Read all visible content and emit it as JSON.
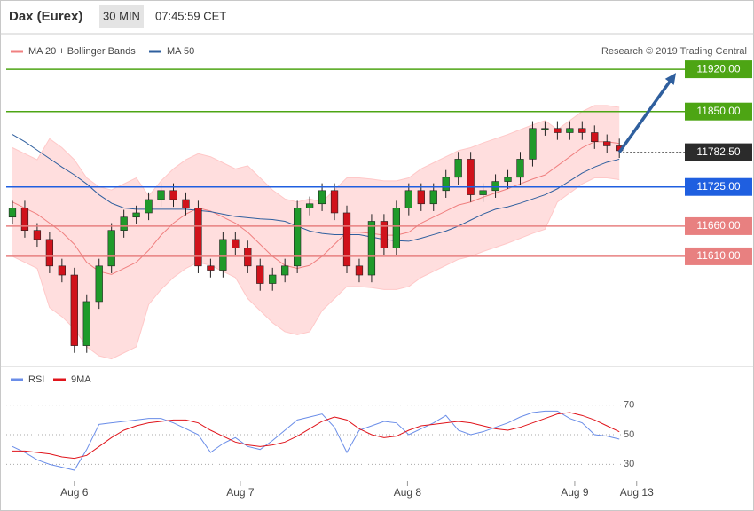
{
  "header": {
    "instrument": "Dax (Eurex)",
    "interval": "30 MIN",
    "time": "07:45:59 CET"
  },
  "chart_data": [
    {
      "type": "candlestick",
      "credit": "Research © 2019 Trading Central",
      "up_color": "#1f9a2a",
      "down_color": "#d0121b",
      "series": [
        {
          "name": "MA 20 + Bollinger Bands",
          "color": "#f08080",
          "band_color": "#ffdede",
          "values": [
            11700,
            11690,
            11680,
            11665,
            11650,
            11630,
            11600,
            11585,
            11580,
            11590,
            11600,
            11620,
            11645,
            11665,
            11680,
            11690,
            11685,
            11675,
            11665,
            11650,
            11630,
            11610,
            11595,
            11590,
            11595,
            11610,
            11630,
            11650,
            11650,
            11648,
            11645,
            11645,
            11650,
            11665,
            11675,
            11685,
            11695,
            11700,
            11708,
            11715,
            11722,
            11730,
            11738,
            11745,
            11760,
            11775,
            11790,
            11800,
            11800,
            11797
          ],
          "upper": [
            11790,
            11780,
            11770,
            11805,
            11790,
            11770,
            11740,
            11725,
            11720,
            11730,
            11740,
            11710,
            11735,
            11755,
            11770,
            11780,
            11775,
            11765,
            11755,
            11760,
            11740,
            11720,
            11705,
            11700,
            11705,
            11700,
            11720,
            11740,
            11740,
            11738,
            11735,
            11735,
            11740,
            11755,
            11765,
            11775,
            11785,
            11790,
            11798,
            11805,
            11812,
            11820,
            11828,
            11835,
            11820,
            11835,
            11850,
            11860,
            11860,
            11857
          ],
          "lower": [
            11610,
            11600,
            11590,
            11525,
            11510,
            11490,
            11460,
            11445,
            11440,
            11450,
            11460,
            11530,
            11555,
            11575,
            11590,
            11600,
            11595,
            11585,
            11575,
            11540,
            11520,
            11500,
            11485,
            11480,
            11485,
            11520,
            11540,
            11560,
            11560,
            11558,
            11555,
            11555,
            11560,
            11575,
            11585,
            11595,
            11605,
            11610,
            11618,
            11625,
            11632,
            11640,
            11648,
            11655,
            11700,
            11715,
            11730,
            11740,
            11740,
            11737
          ]
        },
        {
          "name": "MA 50",
          "color": "#2f5f9e",
          "values": [
            11812,
            11800,
            11786,
            11772,
            11758,
            11745,
            11730,
            11712,
            11698,
            11690,
            11688,
            11688,
            11688,
            11688,
            11688,
            11686,
            11684,
            11680,
            11676,
            11674,
            11672,
            11671,
            11668,
            11660,
            11652,
            11648,
            11646,
            11646,
            11646,
            11642,
            11638,
            11636,
            11635,
            11640,
            11646,
            11652,
            11660,
            11670,
            11680,
            11688,
            11692,
            11698,
            11705,
            11712,
            11722,
            11735,
            11748,
            11758,
            11766,
            11771
          ]
        }
      ],
      "candles": [
        [
          11675,
          11702,
          11663,
          11690
        ],
        [
          11690,
          11702,
          11641,
          11653
        ],
        [
          11653,
          11665,
          11626,
          11638
        ],
        [
          11638,
          11650,
          11582,
          11594
        ],
        [
          11594,
          11606,
          11567,
          11579
        ],
        [
          11579,
          11591,
          11450,
          11462
        ],
        [
          11462,
          11547,
          11450,
          11535
        ],
        [
          11535,
          11606,
          11523,
          11594
        ],
        [
          11594,
          11665,
          11582,
          11653
        ],
        [
          11653,
          11687,
          11641,
          11675
        ],
        [
          11675,
          11694,
          11663,
          11682
        ],
        [
          11682,
          11716,
          11670,
          11704
        ],
        [
          11704,
          11731,
          11692,
          11719
        ],
        [
          11719,
          11731,
          11692,
          11704
        ],
        [
          11704,
          11716,
          11678,
          11690
        ],
        [
          11690,
          11702,
          11582,
          11594
        ],
        [
          11594,
          11606,
          11575,
          11587
        ],
        [
          11587,
          11650,
          11575,
          11638
        ],
        [
          11638,
          11650,
          11612,
          11624
        ],
        [
          11624,
          11636,
          11582,
          11594
        ],
        [
          11594,
          11606,
          11553,
          11565
        ],
        [
          11565,
          11591,
          11553,
          11579
        ],
        [
          11579,
          11606,
          11567,
          11594
        ],
        [
          11594,
          11702,
          11582,
          11690
        ],
        [
          11690,
          11709,
          11678,
          11697
        ],
        [
          11697,
          11731,
          11685,
          11719
        ],
        [
          11719,
          11731,
          11670,
          11682
        ],
        [
          11682,
          11694,
          11582,
          11594
        ],
        [
          11594,
          11606,
          11567,
          11579
        ],
        [
          11579,
          11680,
          11567,
          11668
        ],
        [
          11668,
          11680,
          11612,
          11624
        ],
        [
          11624,
          11702,
          11612,
          11690
        ],
        [
          11690,
          11731,
          11678,
          11719
        ],
        [
          11719,
          11731,
          11685,
          11697
        ],
        [
          11697,
          11731,
          11685,
          11719
        ],
        [
          11719,
          11753,
          11707,
          11741
        ],
        [
          11741,
          11783,
          11729,
          11771
        ],
        [
          11771,
          11783,
          11700,
          11712
        ],
        [
          11712,
          11731,
          11700,
          11719
        ],
        [
          11719,
          11746,
          11707,
          11734
        ],
        [
          11734,
          11753,
          11722,
          11741
        ],
        [
          11741,
          11783,
          11729,
          11771
        ],
        [
          11771,
          11834,
          11759,
          11822
        ],
        [
          11822,
          11834,
          11810,
          11822
        ],
        [
          11822,
          11834,
          11803,
          11815
        ],
        [
          11815,
          11834,
          11803,
          11822
        ],
        [
          11822,
          11834,
          11803,
          11815
        ],
        [
          11815,
          11827,
          11788,
          11800
        ],
        [
          11800,
          11812,
          11781,
          11793
        ],
        [
          11793,
          11805,
          11773,
          11785
        ]
      ],
      "levels": [
        {
          "value": 11920,
          "label": "11920.00",
          "color": "#4da514"
        },
        {
          "value": 11850,
          "label": "11850.00",
          "color": "#4da514"
        },
        {
          "value": 11725,
          "label": "11725.00",
          "color": "#1f5fe0"
        },
        {
          "value": 11660,
          "label": "11660.00",
          "color": "#e88080"
        },
        {
          "value": 11610,
          "label": "11610.00",
          "color": "#e88080"
        }
      ],
      "current_price": {
        "value": 11782.5,
        "label": "11782.50",
        "color": "#2b2b2b"
      },
      "target_arrow": {
        "x": [
          49,
          54
        ],
        "y": [
          11782.5,
          11920
        ],
        "color": "#2f5f9e"
      },
      "ylim": [
        11432,
        11976
      ],
      "xlim": [
        -0.5,
        54.5
      ]
    },
    {
      "type": "line",
      "series": [
        {
          "name": "RSI",
          "color": "#6a8de8",
          "values": [
            42,
            38,
            33,
            30,
            28,
            26,
            40,
            57,
            58,
            59,
            60,
            61,
            61,
            58,
            54,
            50,
            38,
            44,
            48,
            42,
            40,
            46,
            53,
            60,
            62,
            64,
            55,
            38,
            53,
            56,
            59,
            58,
            50,
            54,
            58,
            63,
            53,
            50,
            52,
            55,
            58,
            62,
            65,
            66,
            66,
            61,
            58,
            50,
            49,
            47
          ]
        },
        {
          "name": "9MA",
          "color": "#e0141b",
          "values": [
            39,
            39,
            38,
            37,
            35,
            34,
            36,
            42,
            48,
            53,
            56,
            58,
            59,
            60,
            60,
            58,
            53,
            49,
            45,
            43,
            42,
            43,
            45,
            49,
            54,
            59,
            62,
            60,
            54,
            50,
            48,
            49,
            53,
            56,
            57,
            58,
            59,
            58,
            56,
            54,
            53,
            55,
            58,
            61,
            64,
            65,
            63,
            60,
            56,
            52
          ]
        }
      ],
      "ylim": [
        5,
        80
      ],
      "yticks": [
        30,
        50,
        70
      ],
      "xlim": [
        -0.5,
        54.5
      ],
      "xticks": [
        {
          "value": 5,
          "label": "Aug 6"
        },
        {
          "value": 18.4,
          "label": "Aug 7"
        },
        {
          "value": 31.9,
          "label": "Aug 8"
        },
        {
          "value": 45.4,
          "label": "Aug 9"
        },
        {
          "value": 50.4,
          "label": "Aug 13"
        }
      ]
    }
  ]
}
